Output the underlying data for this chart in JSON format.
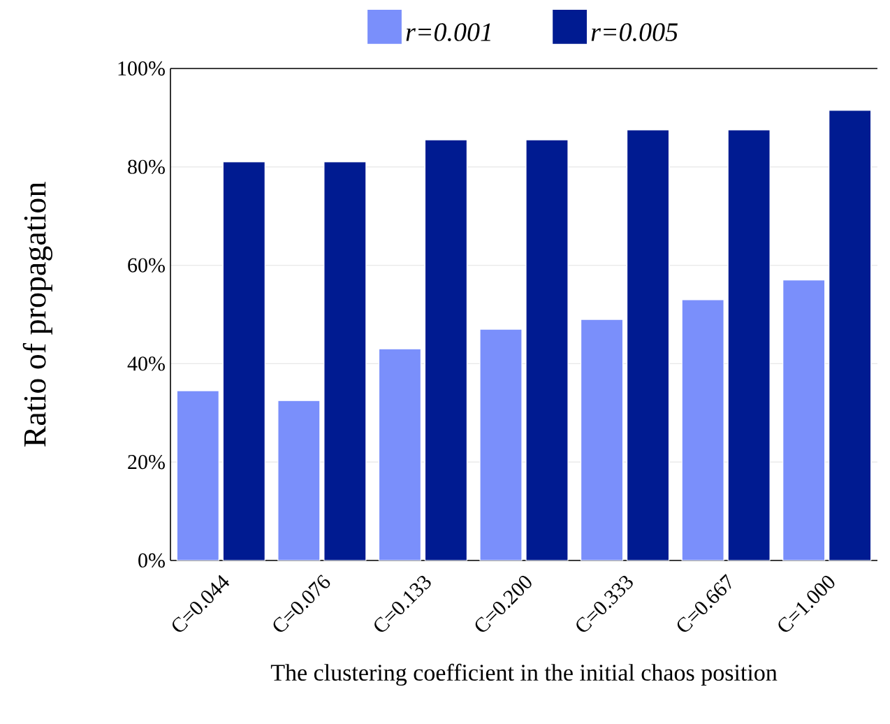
{
  "chart_data": {
    "type": "bar",
    "xlabel": "The clustering coefficient in the initial chaos position",
    "ylabel": "Ratio of propagation",
    "categories": [
      "C=0.044",
      "C=0.076",
      "C=0.133",
      "C=0.200",
      "C=0.333",
      "C=0.667",
      "C=1.000"
    ],
    "series": [
      {
        "name": "*r=0.001*",
        "color": "#7a8ffb",
        "values": [
          34.5,
          32.5,
          43,
          47,
          49,
          53,
          57
        ]
      },
      {
        "name": "*r=0.005*",
        "color": "#001b91",
        "values": [
          81,
          81,
          85.5,
          85.5,
          87.5,
          87.5,
          91.5
        ]
      }
    ],
    "ylim": [
      0,
      100
    ],
    "yticks": [
      {
        "value": 0,
        "label": "0%"
      },
      {
        "value": 20,
        "label": "20%"
      },
      {
        "value": 40,
        "label": "40%"
      },
      {
        "value": 60,
        "label": "60%"
      },
      {
        "value": 80,
        "label": "80%"
      },
      {
        "value": 100,
        "label": "100%"
      }
    ],
    "grid": "y",
    "legend": "top"
  }
}
